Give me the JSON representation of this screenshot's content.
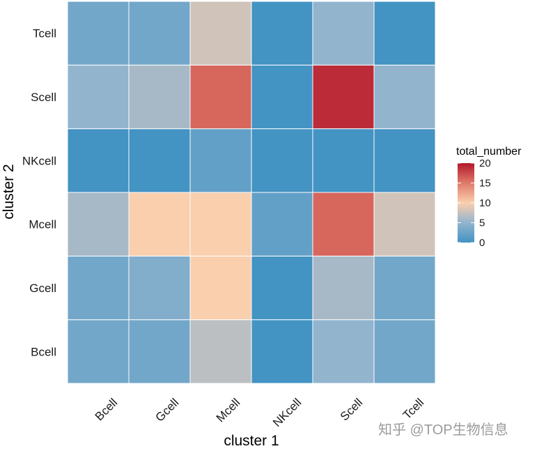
{
  "chart_data": {
    "type": "heatmap",
    "title": "",
    "xlabel": "cluster 1",
    "ylabel": "cluster 2",
    "x_categories": [
      "Bcell",
      "Gcell",
      "Mcell",
      "NKcell",
      "Scell",
      "Tcell"
    ],
    "y_categories": [
      "Bcell",
      "Gcell",
      "Mcell",
      "NKcell",
      "Scell",
      "Tcell"
    ],
    "values": [
      [
        3,
        3,
        7,
        0,
        5,
        3
      ],
      [
        3,
        4,
        10,
        0,
        6,
        3
      ],
      [
        6,
        10,
        10,
        2,
        16,
        8
      ],
      [
        0,
        0,
        2,
        0,
        0,
        0
      ],
      [
        5,
        6,
        16,
        0,
        19,
        5
      ],
      [
        3,
        3,
        8,
        0,
        5,
        0
      ]
    ],
    "legend": {
      "title": "total_number",
      "ticks": [
        0,
        5,
        10,
        15,
        20
      ],
      "position": "right"
    },
    "color_scale": {
      "low": "#4393c3",
      "mid": "#c9c9c9",
      "high": "#b2182b",
      "range": [
        0,
        20
      ]
    }
  },
  "watermark": {
    "text": "知乎 @TOP生物信息"
  }
}
